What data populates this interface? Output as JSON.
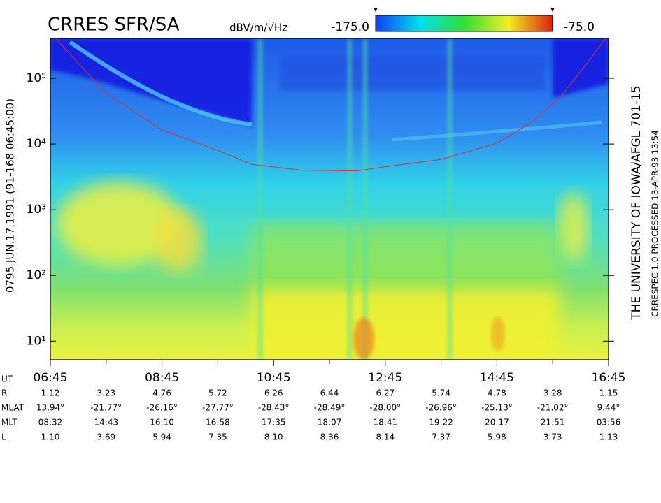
{
  "title": "CRRES SFR/SA",
  "left_label": "0795  JUN.17,1991  (91-168 06:45:00)",
  "right_label": "THE UNIVERSITY OF IOWA/AFGL 701-15",
  "right_sublabel": "CRRESPEC 1.0  PROCESSED 13-APR-93  13:54",
  "colorbar": {
    "label": "dBV/m/√Hz",
    "range": [
      {
        "value": -175,
        "label": "-175.0"
      },
      {
        "value": -75,
        "label": "-75.0"
      }
    ]
  },
  "chart_data": {
    "type": "spectrogram",
    "ylog": true,
    "xlim": [
      6.75,
      16.75
    ],
    "ylim": [
      5.2,
      404000
    ],
    "xticks": [
      {
        "value": 6.75,
        "label": "06:45"
      },
      {
        "value": 8.75,
        "label": "08:45"
      },
      {
        "value": 10.75,
        "label": "10:45"
      },
      {
        "value": 12.75,
        "label": "12:45"
      },
      {
        "value": 14.75,
        "label": "14:45"
      },
      {
        "value": 16.75,
        "label": "16:45"
      }
    ],
    "xminorticks": [
      7.75,
      9.75,
      11.75,
      13.75,
      15.75
    ],
    "yticks": [
      {
        "value": 10,
        "label": "10¹"
      },
      {
        "value": 100,
        "label": "10²"
      },
      {
        "value": 1000,
        "label": "10³"
      },
      {
        "value": 10000,
        "label": "10⁴"
      },
      {
        "value": 100000,
        "label": "10⁵"
      }
    ],
    "series": [
      {
        "color": "#e03030",
        "x": [
          6.85,
          7.73,
          8.73,
          9.75,
          10.36,
          11.24,
          12.24,
          12.74,
          13.74,
          14.74,
          15.38,
          15.87,
          16.37,
          16.69
        ],
        "values": [
          400000,
          61000,
          16700,
          8000,
          4900,
          4000,
          3900,
          4500,
          5800,
          10200,
          21500,
          50000,
          171000,
          400000
        ]
      }
    ]
  },
  "ephemeris": {
    "x_label": "UT",
    "rows": [
      {
        "label": "R",
        "values": [
          "1.12",
          "3.23",
          "4.76",
          "5.72",
          "6.26",
          "6.44",
          "6.27",
          "5.74",
          "4.78",
          "3.28",
          "1.15"
        ]
      },
      {
        "label": "MLAT",
        "values": [
          "13.94°",
          "-21.77°",
          "-26.16°",
          "-27.77°",
          "-28.43°",
          "-28.49°",
          "-28.00°",
          "-26.96°",
          "-25.13°",
          "-21.02°",
          "9.44°"
        ]
      },
      {
        "label": "MLT",
        "values": [
          "08:32",
          "14:43",
          "16:10",
          "16:58",
          "17:35",
          "18:07",
          "18:41",
          "19:22",
          "20:17",
          "21:51",
          "03:56"
        ]
      },
      {
        "label": "L",
        "values": [
          "1.10",
          "3.69",
          "5.94",
          "7.35",
          "8.10",
          "8.36",
          "8.14",
          "7.37",
          "5.98",
          "3.73",
          "1.13"
        ]
      }
    ]
  }
}
